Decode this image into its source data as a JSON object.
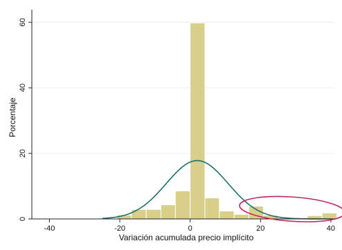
{
  "chart_data": {
    "type": "histogram",
    "title": "",
    "xlabel": "Variación acumulada precio implícito",
    "ylabel": "Porcentaje",
    "xlim": [
      -45,
      41
    ],
    "ylim": [
      0,
      63
    ],
    "xticks": [
      -40,
      -20,
      0,
      20,
      40
    ],
    "xtick_labels": [
      "-40",
      "-20",
      "0",
      "20",
      "40"
    ],
    "yticks": [
      0,
      20,
      40,
      60
    ],
    "ytick_labels": [
      "0",
      "20",
      "40",
      "60"
    ],
    "grid": "horizontal",
    "bin_width": 4.17,
    "bins": [
      {
        "x0": -25.0,
        "x1": -20.8,
        "value": 0.2
      },
      {
        "x0": -20.8,
        "x1": -16.7,
        "value": 1.2
      },
      {
        "x0": -16.7,
        "x1": -12.5,
        "value": 2.9
      },
      {
        "x0": -12.5,
        "x1": -8.3,
        "value": 2.9
      },
      {
        "x0": -8.3,
        "x1": -4.2,
        "value": 4.3
      },
      {
        "x0": -4.2,
        "x1": 0.0,
        "value": 8.5
      },
      {
        "x0": 0.0,
        "x1": 4.2,
        "value": 59.8
      },
      {
        "x0": 4.2,
        "x1": 8.3,
        "value": 6.4
      },
      {
        "x0": 8.3,
        "x1": 12.5,
        "value": 2.4
      },
      {
        "x0": 12.5,
        "x1": 16.7,
        "value": 1.4
      },
      {
        "x0": 16.7,
        "x1": 20.8,
        "value": 3.9
      },
      {
        "x0": 20.8,
        "x1": 25.0,
        "value": 1.1
      },
      {
        "x0": 25.0,
        "x1": 29.2,
        "value": 0.3
      },
      {
        "x0": 29.2,
        "x1": 33.3,
        "value": 0.2
      },
      {
        "x0": 33.3,
        "x1": 37.5,
        "value": 1.0
      },
      {
        "x0": 37.5,
        "x1": 41.7,
        "value": 1.8
      }
    ],
    "normal_curve": {
      "mean": 2.0,
      "sd": 8.8,
      "peak": 17.8
    },
    "annotation": {
      "shape": "ellipse",
      "center_x": 29,
      "center_y": 3,
      "rx": 15,
      "ry": 3.7
    },
    "colors": {
      "bar_fill": "#d7cf8a",
      "bar_stroke": "#ffffff",
      "curve": "#1f6e6e",
      "annotation": "#c0285a",
      "grid": "#ececec",
      "axis": "#222222"
    }
  }
}
